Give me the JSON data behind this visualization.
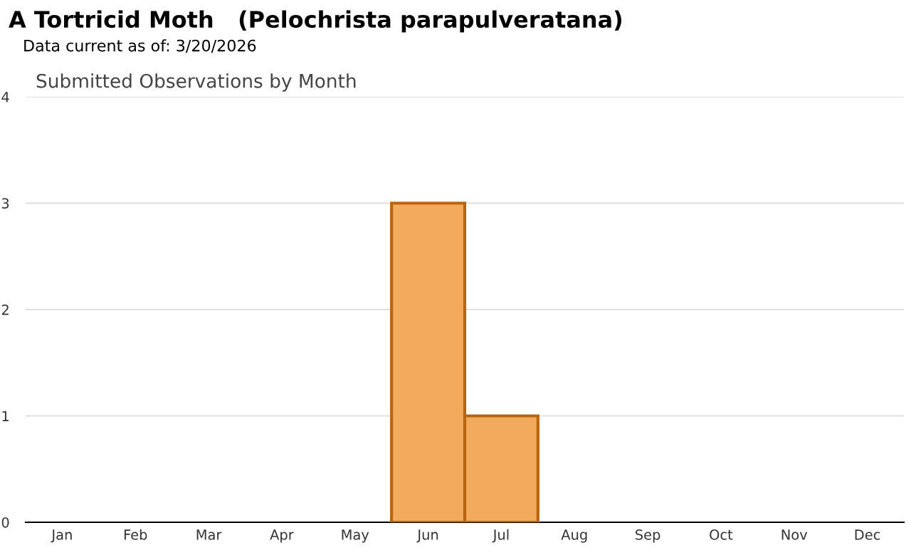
{
  "chart_data": {
    "type": "bar",
    "title": "A Tortricid Moth   (Pelochrista parapulveratana)",
    "subtitle": "Data current as of: 3/20/2026",
    "annotations": [
      "Submitted Observations by Month"
    ],
    "categories": [
      "Jan",
      "Feb",
      "Mar",
      "Apr",
      "May",
      "Jun",
      "Jul",
      "Aug",
      "Sep",
      "Oct",
      "Nov",
      "Dec"
    ],
    "values": [
      0,
      0,
      0,
      0,
      0,
      3,
      1,
      0,
      0,
      0,
      0,
      0
    ],
    "color": "#f2ab5c",
    "ylim": [
      0,
      4
    ],
    "yticks": [
      0,
      1,
      2,
      3,
      4
    ],
    "grid": "y",
    "legend": false
  }
}
